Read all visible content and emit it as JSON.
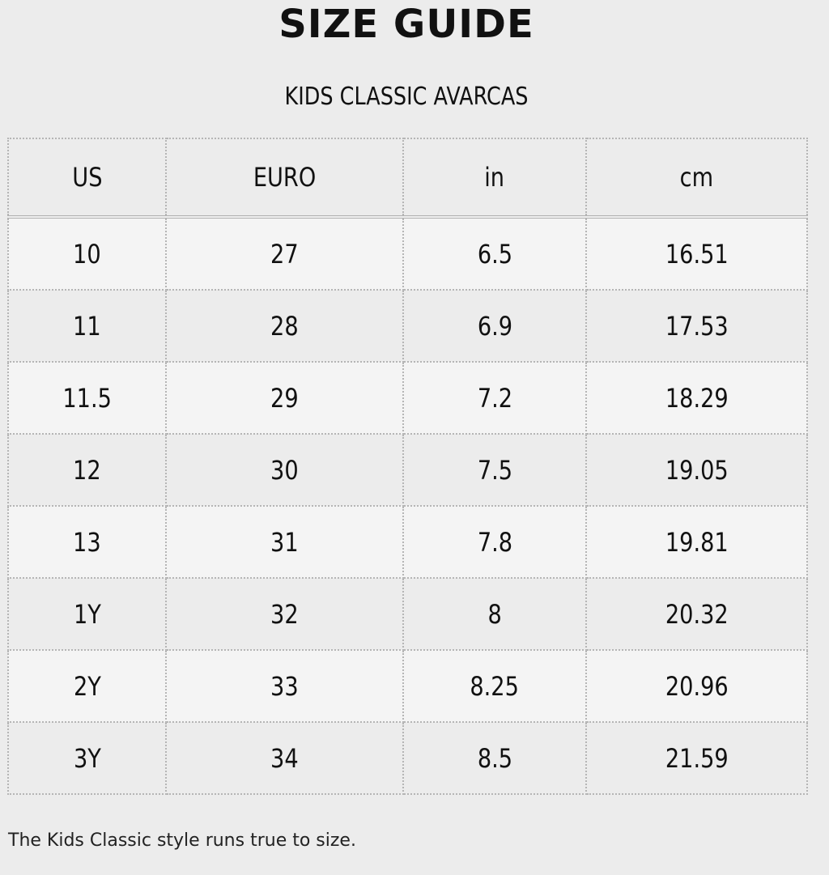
{
  "title": "SIZE GUIDE",
  "subtitle": "KIDS CLASSIC AVARCAS",
  "table": {
    "headers": [
      "US",
      "EURO",
      "in",
      "cm"
    ],
    "rows": [
      [
        "10",
        "27",
        "6.5",
        "16.51"
      ],
      [
        "11",
        "28",
        "6.9",
        "17.53"
      ],
      [
        "11.5",
        "29",
        "7.2",
        "18.29"
      ],
      [
        "12",
        "30",
        "7.5",
        "19.05"
      ],
      [
        "13",
        "31",
        "7.8",
        "19.81"
      ],
      [
        "1Y",
        "32",
        "8",
        "20.32"
      ],
      [
        "2Y",
        "33",
        "8.25",
        "20.96"
      ],
      [
        "3Y",
        "34",
        "8.5",
        "21.59"
      ]
    ]
  },
  "note": "The Kids Classic style runs true to size."
}
